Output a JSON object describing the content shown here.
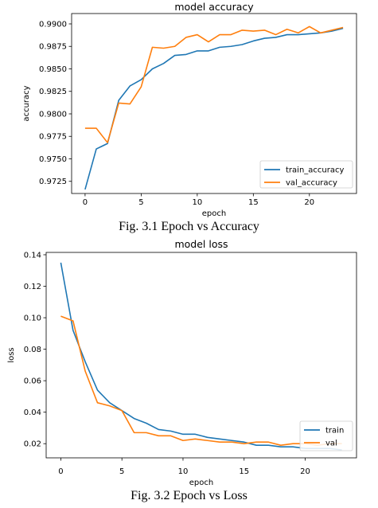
{
  "figures": [
    {
      "caption": "Fig. 3.1 Epoch vs Accuracy"
    },
    {
      "caption": "Fig. 3.2 Epoch vs Loss"
    }
  ],
  "chart_data": [
    {
      "type": "line",
      "title": "model accuracy",
      "xlabel": "epoch",
      "ylabel": "accuracy",
      "xlim": [
        -1.2,
        24.2
      ],
      "ylim": [
        0.97115,
        0.99115
      ],
      "xticks": [
        0,
        5,
        10,
        15,
        20
      ],
      "yticks": [
        0.9725,
        0.975,
        0.9775,
        0.98,
        0.9825,
        0.985,
        0.9875,
        0.99
      ],
      "ytick_labels": [
        "0.9725",
        "0.9750",
        "0.9775",
        "0.9800",
        "0.9825",
        "0.9850",
        "0.9875",
        "0.9900"
      ],
      "legend": "lower-right",
      "grid": false,
      "x": [
        0,
        1,
        2,
        3,
        4,
        5,
        6,
        7,
        8,
        9,
        10,
        11,
        12,
        13,
        14,
        15,
        16,
        17,
        18,
        19,
        20,
        21,
        22,
        23
      ],
      "series": [
        {
          "name": "train_accuracy",
          "color": "#1f77b4",
          "values": [
            0.9716,
            0.9761,
            0.9767,
            0.9815,
            0.9831,
            0.9838,
            0.985,
            0.9856,
            0.9865,
            0.9866,
            0.987,
            0.987,
            0.9874,
            0.9875,
            0.9877,
            0.9881,
            0.9884,
            0.9885,
            0.9888,
            0.9888,
            0.9889,
            0.989,
            0.9892,
            0.9895
          ]
        },
        {
          "name": "val_accuracy",
          "color": "#ff7f0e",
          "values": [
            0.9784,
            0.9784,
            0.9768,
            0.9812,
            0.9811,
            0.983,
            0.9874,
            0.9873,
            0.9875,
            0.9885,
            0.9888,
            0.988,
            0.9888,
            0.9888,
            0.9893,
            0.9892,
            0.9893,
            0.9888,
            0.9894,
            0.989,
            0.9897,
            0.989,
            0.9893,
            0.9896
          ]
        }
      ]
    },
    {
      "type": "line",
      "title": "model loss",
      "xlabel": "epoch",
      "ylabel": "loss",
      "xlim": [
        -1.2,
        24.2
      ],
      "ylim": [
        0.011,
        0.1415
      ],
      "xticks": [
        0,
        5,
        10,
        15,
        20
      ],
      "yticks": [
        0.02,
        0.04,
        0.06,
        0.08,
        0.1,
        0.12,
        0.14
      ],
      "ytick_labels": [
        "0.02",
        "0.04",
        "0.06",
        "0.08",
        "0.10",
        "0.12",
        "0.14"
      ],
      "legend": "lower-right",
      "grid": false,
      "x": [
        0,
        1,
        2,
        3,
        4,
        5,
        6,
        7,
        8,
        9,
        10,
        11,
        12,
        13,
        14,
        15,
        16,
        17,
        18,
        19,
        20,
        21,
        22,
        23
      ],
      "series": [
        {
          "name": "train",
          "color": "#1f77b4",
          "values": [
            0.135,
            0.092,
            0.072,
            0.054,
            0.046,
            0.041,
            0.036,
            0.033,
            0.029,
            0.028,
            0.026,
            0.026,
            0.024,
            0.023,
            0.022,
            0.021,
            0.019,
            0.019,
            0.018,
            0.018,
            0.017,
            0.017,
            0.017,
            0.016
          ]
        },
        {
          "name": "val",
          "color": "#ff7f0e",
          "values": [
            0.101,
            0.098,
            0.066,
            0.046,
            0.044,
            0.041,
            0.027,
            0.027,
            0.025,
            0.025,
            0.022,
            0.023,
            0.022,
            0.021,
            0.021,
            0.02,
            0.021,
            0.021,
            0.019,
            0.02,
            0.02,
            0.019,
            0.02,
            0.02
          ]
        }
      ]
    }
  ]
}
